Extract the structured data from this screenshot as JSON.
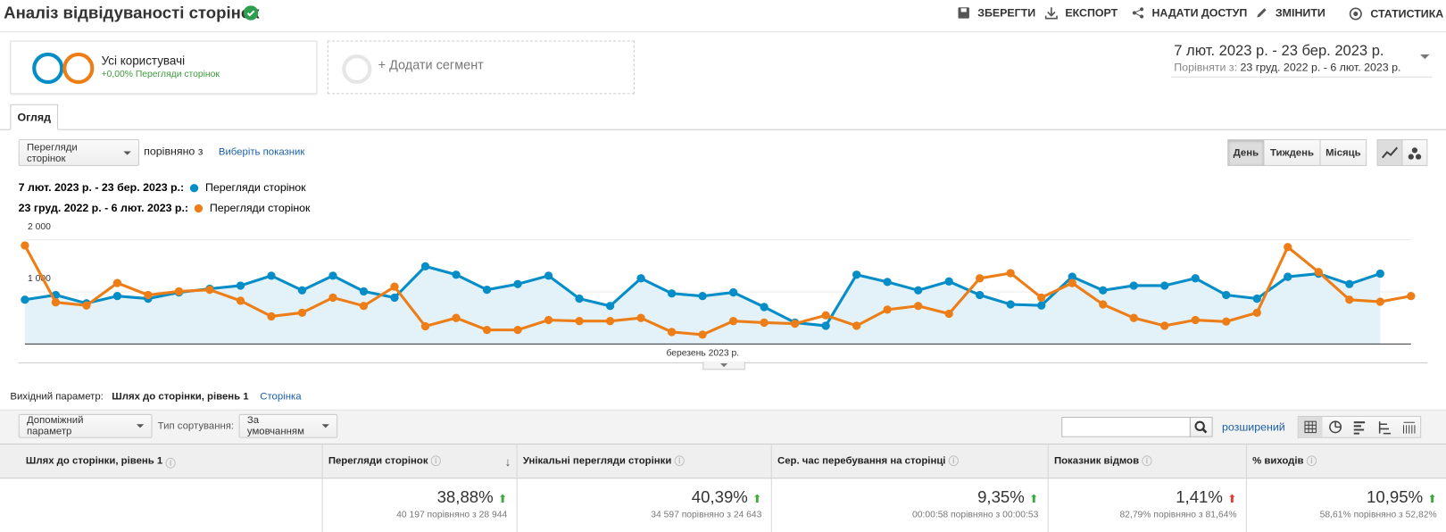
{
  "header": {
    "title": "Аналіз відвідуваності сторінок",
    "actions": [
      "ЗБЕРЕГТИ",
      "ЕКСПОРТ",
      "НАДАТИ ДОСТУП",
      "ЗМІНИТИ",
      "СТАТИСТИКА"
    ]
  },
  "segments": {
    "active": {
      "name": "Усі користувачі",
      "change": "+0,00% Перегляди сторінок"
    },
    "add": "+ Додати сегмент"
  },
  "date_range": {
    "current": "7 лют. 2023 р. - 23 бер. 2023 р.",
    "compare_label": "Порівняти з:",
    "compare": "23 груд. 2022 р. - 6 лют. 2023 р."
  },
  "tabs": [
    "Огляд"
  ],
  "chart_controls": {
    "metric": "Перегляди сторінок",
    "compare_text": "порівняно з",
    "select_metric": "Виберіть показник",
    "granularity": [
      "День",
      "Тиждень",
      "Місяць"
    ]
  },
  "chart_data": {
    "type": "line",
    "ylim": [
      0,
      2300
    ],
    "yticks": [
      {
        "value": 1000,
        "label": "1 000"
      },
      {
        "value": 2000,
        "label": "2 000"
      }
    ],
    "grid": true,
    "xlabel": "березень 2023 р.",
    "series": [
      {
        "period": "7 лют. 2023 р. - 23 бер. 2023 р.:",
        "name": "Перегляди сторінок",
        "color": "#058dc7",
        "area": true,
        "values": [
          850,
          940,
          780,
          920,
          870,
          990,
          1060,
          1120,
          1310,
          1030,
          1310,
          1010,
          890,
          1490,
          1330,
          1040,
          1150,
          1310,
          870,
          730,
          1260,
          970,
          920,
          990,
          710,
          410,
          350,
          1330,
          1190,
          1030,
          1200,
          940,
          760,
          740,
          1290,
          1030,
          1120,
          1120,
          1260,
          940,
          870,
          1290,
          1350,
          1150,
          1350
        ]
      },
      {
        "period": "23 груд. 2022 р. - 6 лют. 2023 р.:",
        "name": "Перегляди сторінок",
        "color": "#ed7e17",
        "area": false,
        "values": [
          1890,
          800,
          740,
          1170,
          940,
          1010,
          1040,
          830,
          530,
          600,
          890,
          730,
          1100,
          340,
          500,
          270,
          270,
          460,
          440,
          440,
          500,
          230,
          180,
          440,
          410,
          390,
          550,
          350,
          660,
          730,
          580,
          1260,
          1360,
          890,
          1170,
          760,
          500,
          350,
          460,
          430,
          600,
          1860,
          1380,
          850,
          810,
          920
        ]
      }
    ]
  },
  "dimension": {
    "label": "Вихідний параметр:",
    "active": "Шлях до сторінки, рівень 1",
    "other": "Сторінка"
  },
  "table_controls": {
    "secondary": "Допоміжний параметр",
    "sort_label": "Тип сортування:",
    "sort": "За умовчанням",
    "advanced": "розширений"
  },
  "table": {
    "headers": [
      "Шлях до сторінки, рівень 1",
      "Перегляди сторінок",
      "Унікальні перегляди сторінки",
      "Сер. час перебування на сторінці",
      "Показник відмов",
      "% виходів"
    ],
    "totals": [
      {
        "change": "38,88%",
        "detail": "40 197 порівняно з 28 944"
      },
      {
        "change": "40,39%",
        "detail": "34 597 порівняно з 24 643"
      },
      {
        "change": "9,35%",
        "detail": "00:00:58 порівняно з 00:00:53"
      },
      {
        "change": "1,41%",
        "detail": "82,79% порівняно з 81,64%"
      },
      {
        "change": "10,95%",
        "detail": "58,61% порівняно з 52,82%"
      }
    ]
  }
}
